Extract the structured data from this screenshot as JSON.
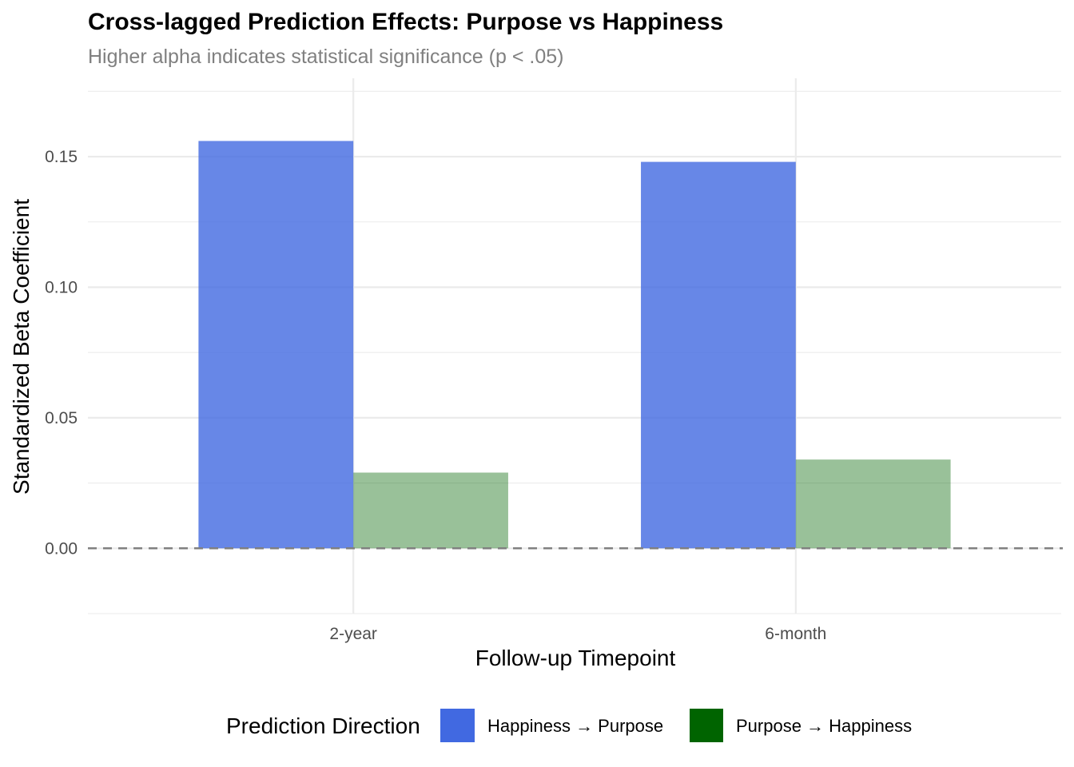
{
  "chart_data": {
    "type": "bar",
    "title": "Cross-lagged Prediction Effects: Purpose vs Happiness",
    "subtitle": "Higher alpha indicates statistical significance (p < .05)",
    "xlabel": "Follow-up Timepoint",
    "ylabel": "Standardized Beta Coefficient",
    "categories": [
      "2-year",
      "6-month"
    ],
    "series": [
      {
        "name": "Happiness → Purpose",
        "color": "#4169E1",
        "alpha": 0.8,
        "values": [
          0.156,
          0.148
        ]
      },
      {
        "name": "Purpose → Happiness",
        "color": "#006400",
        "alpha": 0.4,
        "values": [
          0.029,
          0.034
        ]
      }
    ],
    "ylim": [
      -0.025,
      0.18
    ],
    "yticks": [
      0.0,
      0.05,
      0.1,
      0.15
    ],
    "ytick_labels": [
      "0.00",
      "0.05",
      "0.10",
      "0.15"
    ],
    "reference_line": {
      "y": 0,
      "style": "dashed",
      "color": "#808080"
    },
    "grid": true,
    "legend": {
      "title": "Prediction Direction",
      "position": "bottom"
    }
  }
}
